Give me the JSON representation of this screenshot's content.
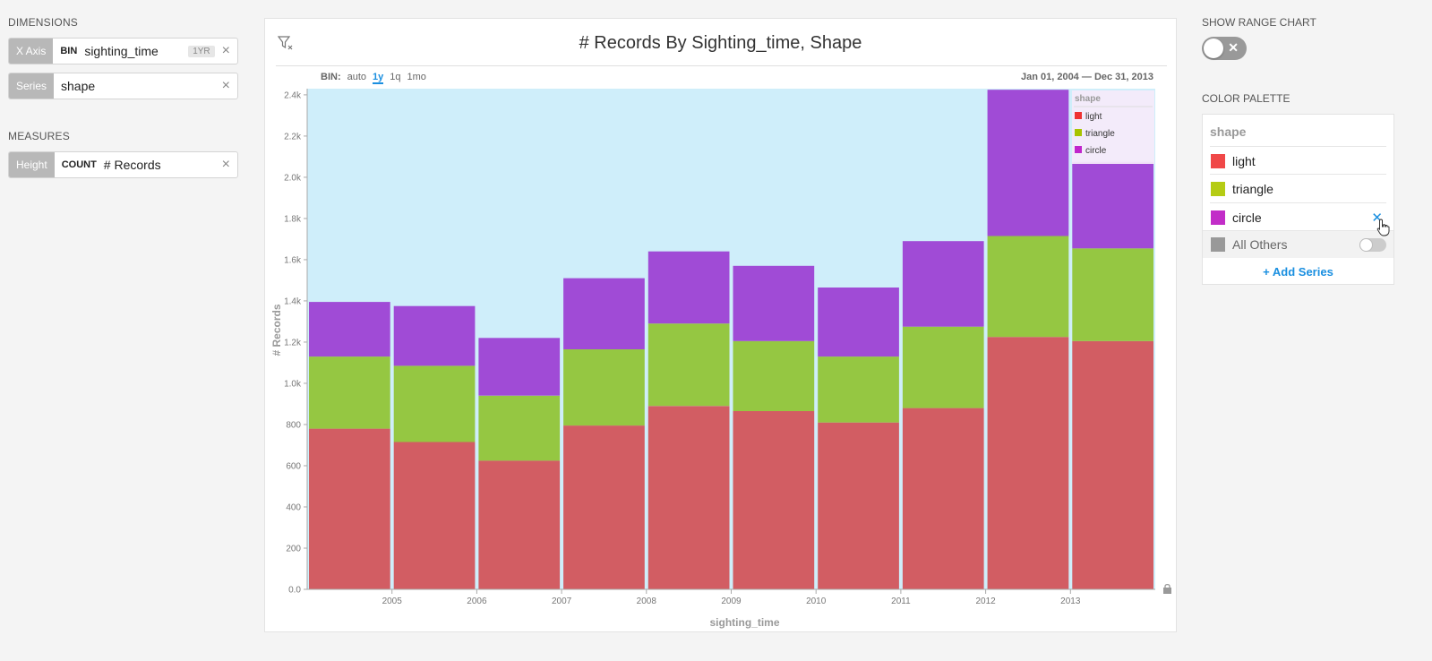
{
  "left_panel": {
    "dimensions_title": "DIMENSIONS",
    "x_axis": {
      "tag": "X Axis",
      "op": "BIN",
      "field": "sighting_time",
      "badge": "1YR"
    },
    "series": {
      "tag": "Series",
      "field": "shape"
    },
    "measures_title": "MEASURES",
    "height": {
      "tag": "Height",
      "op": "COUNT",
      "field": "# Records"
    },
    "clear_icon": "×"
  },
  "chart": {
    "title": "# Records By Sighting_time, Shape",
    "bin_label": "BIN:",
    "bin_options": [
      "auto",
      "1y",
      "1q",
      "1mo"
    ],
    "bin_active": "1y",
    "range_start": "Jan 01, 2004",
    "range_sep": "—",
    "range_end": "Dec 31, 2013",
    "legend_title": "shape"
  },
  "chart_data": {
    "type": "bar",
    "stacked": true,
    "title": "# Records By Sighting_time, Shape",
    "xlabel": "sighting_time",
    "ylabel": "# Records",
    "categories": [
      "2004",
      "2005",
      "2006",
      "2007",
      "2008",
      "2009",
      "2010",
      "2011",
      "2012",
      "2013"
    ],
    "x_tick_labels": [
      "2005",
      "2006",
      "2007",
      "2008",
      "2009",
      "2010",
      "2011",
      "2012",
      "2013"
    ],
    "y_tick_labels": [
      "0.0",
      "200",
      "400",
      "600",
      "800",
      "1.0k",
      "1.2k",
      "1.4k",
      "1.6k",
      "1.8k",
      "2.0k",
      "2.2k",
      "2.4k"
    ],
    "ylim": [
      0,
      2430
    ],
    "series": [
      {
        "name": "light",
        "color": "#d25d63",
        "values": [
          780,
          715,
          625,
          795,
          890,
          865,
          810,
          880,
          1225,
          1205
        ]
      },
      {
        "name": "triangle",
        "color": "#95c742",
        "values": [
          350,
          370,
          315,
          370,
          400,
          340,
          320,
          395,
          490,
          450
        ]
      },
      {
        "name": "circle",
        "color": "#a04bd6",
        "values": [
          265,
          290,
          280,
          345,
          350,
          365,
          335,
          415,
          710,
          420
        ]
      }
    ],
    "legend_colors": [
      "#ee3333",
      "#a8c400",
      "#c026cc"
    ],
    "legend_position": "top-right",
    "background": "#cfeefa",
    "grid": false
  },
  "right_panel": {
    "range_chart_title": "SHOW RANGE CHART",
    "range_toggle_mark": "✕",
    "palette_title": "COLOR PALETTE",
    "palette_header": "shape",
    "palette_items": [
      {
        "label": "light",
        "color": "#f04848"
      },
      {
        "label": "triangle",
        "color": "#b5cc14"
      },
      {
        "label": "circle",
        "color": "#c22dc8"
      }
    ],
    "all_others": {
      "label": "All Others",
      "color": "#999999"
    },
    "remove_icon": "✕",
    "add_series": "+ Add Series"
  }
}
